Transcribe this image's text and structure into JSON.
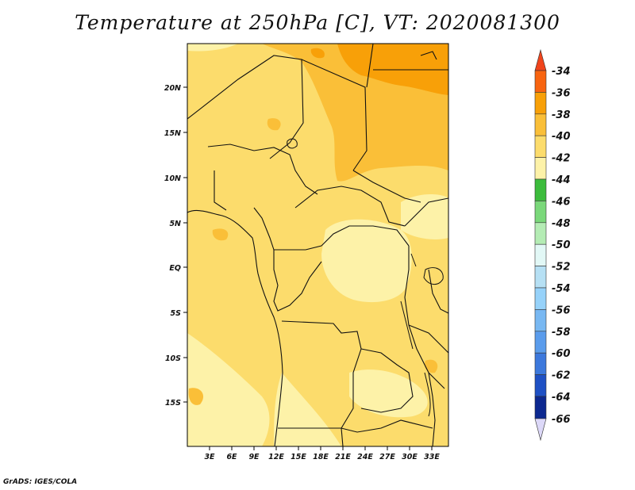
{
  "title": "Temperature at 250hPa [C], VT: 2020081300",
  "credit": "GrADS: IGES/COLA",
  "map": {
    "lat_labels": [
      "20N",
      "15N",
      "10N",
      "5N",
      "EQ",
      "5S",
      "10S",
      "15S"
    ],
    "lon_labels": [
      "3E",
      "6E",
      "9E",
      "12E",
      "15E",
      "18E",
      "21E",
      "24E",
      "27E",
      "30E",
      "33E"
    ]
  },
  "colorbar": {
    "labels": [
      "-34",
      "-36",
      "-38",
      "-40",
      "-42",
      "-44",
      "-46",
      "-48",
      "-50",
      "-52",
      "-54",
      "-56",
      "-58",
      "-60",
      "-62",
      "-64",
      "-66"
    ],
    "colors": {
      "above_-34": "#f0441c",
      "-36_-34": "#f86410",
      "-38_-36": "#f8a008",
      "-40_-38": "#fabf38",
      "-42_-40": "#fcdc6c",
      "-44_-42": "#fdf2a8",
      "-46_-44": "#3cbc3c",
      "-48_-46": "#7ad87a",
      "-50_-48": "#b4ecb4",
      "-52_-50": "#e2f8f6",
      "-54_-52": "#b6e0f4",
      "-56_-54": "#96d2fa",
      "-58_-56": "#78b8f2",
      "-60_-58": "#5a9cec",
      "-62_-60": "#3c78dc",
      "-64_-62": "#1e50c4",
      "-66_-64": "#0c2890",
      "below_-66": "#dcd8f8"
    }
  }
}
